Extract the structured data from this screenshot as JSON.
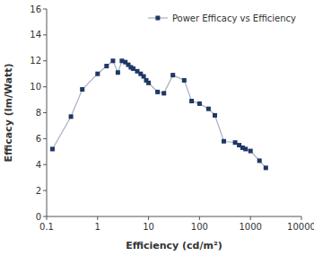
{
  "chart_data": {
    "type": "line",
    "x": [
      0.13,
      0.3,
      0.5,
      1.0,
      1.5,
      2.0,
      2.5,
      3.0,
      3.5,
      4.0,
      4.5,
      5.0,
      6.0,
      7.0,
      8.0,
      9.0,
      10.0,
      15.0,
      20.0,
      30.0,
      50.0,
      70.0,
      100.0,
      150.0,
      200.0,
      300.0,
      500.0,
      600.0,
      700.0,
      800.0,
      1000.0,
      1500.0,
      2000.0
    ],
    "series": [
      {
        "name": "Power Efficacy vs Efficiency",
        "color": "#1f3864",
        "marker": "square",
        "values": [
          5.2,
          7.7,
          9.8,
          11.0,
          11.6,
          12.0,
          11.1,
          12.0,
          11.9,
          11.7,
          11.5,
          11.4,
          11.2,
          11.0,
          10.8,
          10.5,
          10.3,
          9.6,
          9.5,
          10.9,
          10.5,
          8.9,
          8.7,
          8.3,
          7.8,
          5.8,
          5.7,
          5.5,
          5.3,
          5.2,
          5.05,
          4.3,
          3.75
        ]
      }
    ],
    "xlabel": "Efficiency (cd/m²)",
    "ylabel": "Efficacy (lm/Watt)",
    "log": "x",
    "xlim": [
      0.1,
      10000
    ],
    "xticks": [
      0.1,
      1,
      10,
      100,
      1000,
      10000
    ],
    "ylim": [
      0,
      16
    ],
    "yticks": [
      0,
      2,
      4,
      6,
      8,
      10,
      12,
      14,
      16
    ],
    "grid": false,
    "legend": "upper right"
  }
}
